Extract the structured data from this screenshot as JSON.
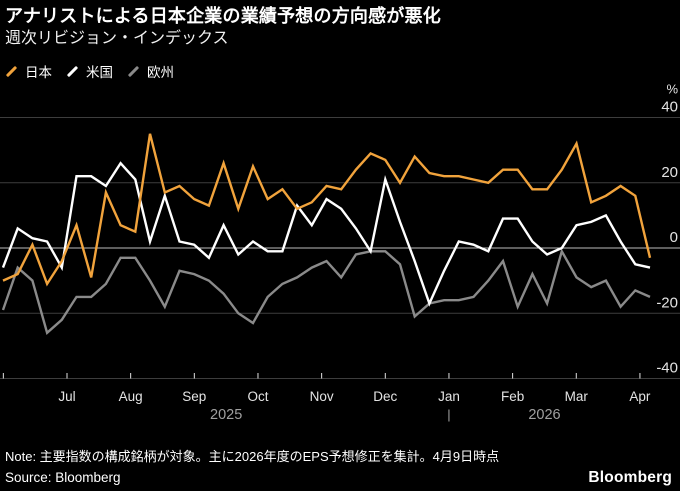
{
  "header": {
    "title": "アナリストによる日本企業の業績予想の方向感が悪化",
    "subtitle": "週次リビジョン・インデックス"
  },
  "legend": [
    {
      "label": "日本",
      "color": "#F1A33C"
    },
    {
      "label": "米国",
      "color": "#FFFFFF"
    },
    {
      "label": "欧州",
      "color": "#8A8A8A"
    }
  ],
  "chart_data": {
    "type": "line",
    "title": "アナリストによる日本企業の業績予想の方向感が悪化",
    "subtitle": "週次リビジョン・インデックス",
    "unit": "%",
    "ylabel": "%",
    "ylim": [
      -40,
      40
    ],
    "y_ticks": [
      40,
      20,
      0,
      -20,
      -40
    ],
    "x_ticks": [
      "Jul",
      "Aug",
      "Sep",
      "Oct",
      "Nov",
      "Dec",
      "Jan",
      "Feb",
      "Mar",
      "Apr"
    ],
    "year_labels": [
      "2025",
      "2026"
    ],
    "year_divider": "|",
    "frequency": "weekly",
    "grid": true,
    "legend_position": "top-left",
    "colors": {
      "grid": "#3d3d3d",
      "zero_line": "#bdbdbd",
      "axis_text": "#e3e3e3",
      "year_text": "#a0a0a0"
    },
    "series": [
      {
        "name": "日本",
        "color": "#F1A33C",
        "values": [
          -10,
          -8,
          1,
          -11,
          -4,
          7,
          -9,
          17,
          7,
          5,
          35,
          17,
          19,
          15,
          13,
          26,
          12,
          25,
          15,
          18,
          12,
          14,
          19,
          18,
          24,
          29,
          27,
          20,
          28,
          23,
          22,
          22,
          21,
          20,
          24,
          24,
          18,
          18,
          24,
          32,
          14,
          16,
          19,
          16,
          -3
        ]
      },
      {
        "name": "米国",
        "color": "#FFFFFF",
        "values": [
          -6,
          6,
          3,
          2,
          -6,
          22,
          22,
          19,
          26,
          21,
          2,
          16,
          2,
          1,
          -3,
          7,
          -2,
          2,
          -1,
          -1,
          13,
          7,
          15,
          12,
          6,
          -1,
          21,
          8,
          -4,
          -17,
          -7,
          2,
          1,
          -1,
          9,
          9,
          2,
          -2,
          0,
          7,
          8,
          10,
          2,
          -5,
          -6
        ]
      },
      {
        "name": "欧州",
        "color": "#8A8A8A",
        "values": [
          -19,
          -6,
          -10,
          -26,
          -22,
          -15,
          -15,
          -11,
          -3,
          -3,
          -10,
          -18,
          -7,
          -8,
          -10,
          -14,
          -20,
          -23,
          -15,
          -11,
          -9,
          -6,
          -4,
          -9,
          -2,
          -1,
          -1,
          -5,
          -21,
          -17,
          -16,
          -16,
          -15,
          -10,
          -4,
          -18,
          -8,
          -17,
          -1,
          -9,
          -12,
          -10,
          -18,
          -13,
          -15
        ]
      }
    ]
  },
  "footer": {
    "note": "Note: 主要指数の構成銘柄が対象。主に2026年度のEPS予想修正を集計。4月9日時点",
    "source": "Source: Bloomberg",
    "logo": "Bloomberg"
  }
}
